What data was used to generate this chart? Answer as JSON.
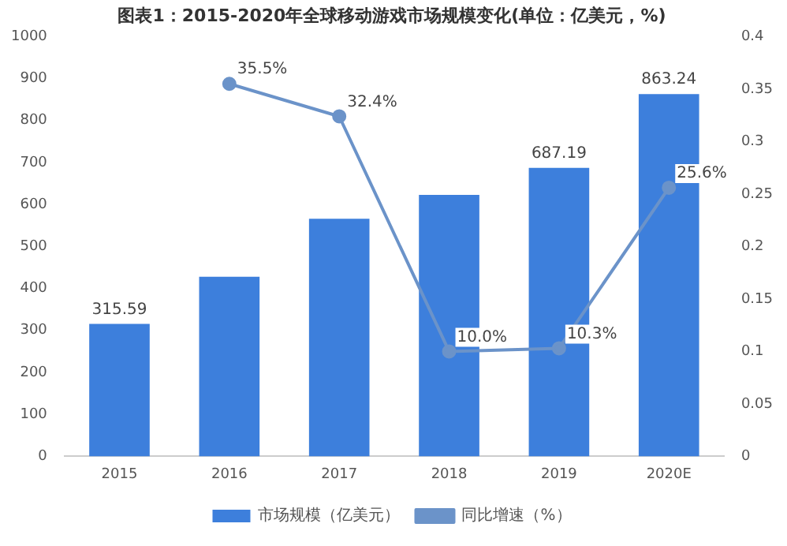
{
  "chart_data": {
    "type": "bar",
    "title": "图表1：2015-2020年全球移动游戏市场规模变化(单位：亿美元，%)",
    "categories": [
      "2015",
      "2016",
      "2017",
      "2018",
      "2019",
      "2020E"
    ],
    "series": [
      {
        "name": "市场规模（亿美元）",
        "color": "#3d7fdc",
        "values": [
          315.59,
          428,
          566,
          623,
          687.19,
          863.24
        ],
        "value_labels": [
          "315.59",
          null,
          null,
          null,
          "687.19",
          "863.24"
        ]
      },
      {
        "name": "同比增速（%）",
        "type": "line",
        "axis": "y2",
        "color": "#6b93c9",
        "values": [
          null,
          0.355,
          0.324,
          0.1,
          0.103,
          0.256
        ],
        "value_labels": [
          null,
          "35.5%",
          "32.4%",
          "10.0%",
          "10.3%",
          "25.6%"
        ]
      }
    ],
    "ylim": [
      0,
      1000
    ],
    "yticks": [
      0,
      100,
      200,
      300,
      400,
      500,
      600,
      700,
      800,
      900,
      1000
    ],
    "y2lim": [
      0,
      0.4
    ],
    "y2ticks": [
      0,
      0.05,
      0.1,
      0.15,
      0.2,
      0.25,
      0.3,
      0.35,
      0.4
    ],
    "grid": false,
    "legend": "bottom",
    "marker": "circle"
  }
}
